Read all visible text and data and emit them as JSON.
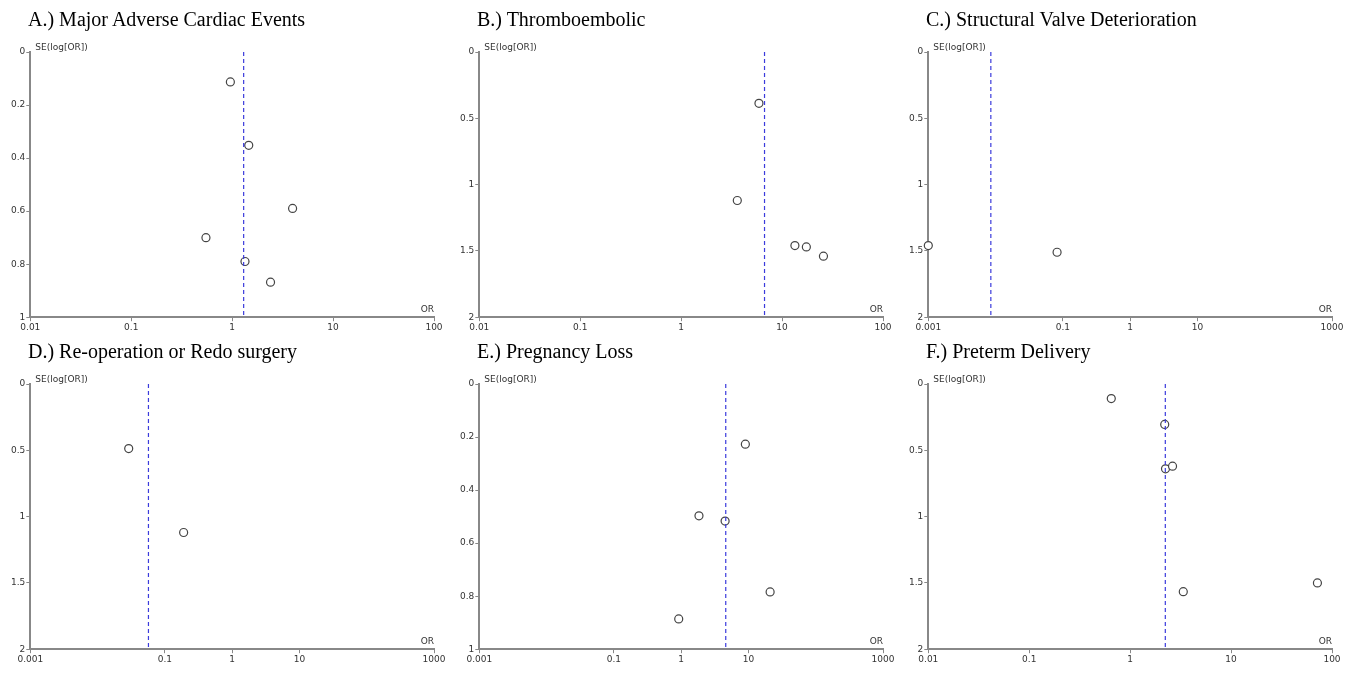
{
  "chart_data": [
    {
      "type": "scatter",
      "title": "A.) Major Adverse Cardiac Events",
      "xlabel": "OR",
      "ylabel": "SE(log[OR])",
      "log": "x",
      "marker": "circle",
      "color": "#444444",
      "x": [
        0.96,
        1.46,
        3.97,
        0.55,
        1.34,
        2.4
      ],
      "values": [
        0.113,
        0.352,
        0.59,
        0.7,
        0.79,
        0.868
      ],
      "xlim": [
        0.01,
        100
      ],
      "xticks": [
        0.01,
        0.1,
        1,
        10,
        100
      ],
      "ylim": [
        1,
        0
      ],
      "yticks": [
        0,
        0.2,
        0.4,
        0.6,
        0.8,
        1
      ],
      "ref_lines": [
        {
          "axis": "x",
          "value": 1.3,
          "color": "#3b3bdc",
          "line_style": "dashed"
        }
      ]
    },
    {
      "type": "scatter",
      "title": "B.) Thromboembolic",
      "xlabel": "OR",
      "ylabel": "SE(log[OR])",
      "log": "x",
      "marker": "circle",
      "color": "#444444",
      "x": [
        5.9,
        3.6,
        13.4,
        17.4,
        25.7
      ],
      "values": [
        0.387,
        1.12,
        1.46,
        1.47,
        1.54
      ],
      "xlim": [
        0.01,
        100
      ],
      "xticks": [
        0.01,
        0.1,
        1,
        10,
        100
      ],
      "ylim": [
        2,
        0
      ],
      "yticks": [
        0,
        0.5,
        1,
        1.5,
        2
      ],
      "ref_lines": [
        {
          "axis": "x",
          "value": 6.7,
          "color": "#3b3bdc",
          "line_style": "dashed"
        }
      ]
    },
    {
      "type": "scatter",
      "title": "C.) Structural Valve Deterioration",
      "xlabel": "OR",
      "ylabel": "SE(log[OR])",
      "log": "x",
      "marker": "circle",
      "color": "#444444",
      "x": [
        0.001,
        0.082
      ],
      "values": [
        1.46,
        1.51
      ],
      "xlim": [
        0.001,
        1000
      ],
      "xticks": [
        0.001,
        0.1,
        1,
        10,
        1000
      ],
      "ylim": [
        2,
        0
      ],
      "yticks": [
        0,
        0.5,
        1,
        1.5,
        2
      ],
      "ref_lines": [
        {
          "axis": "x",
          "value": 0.0085,
          "color": "#3b3bdc",
          "line_style": "dashed"
        }
      ]
    },
    {
      "type": "scatter",
      "title": "D.) Re-operation or Redo surgery",
      "xlabel": "OR",
      "ylabel": "SE(log[OR])",
      "log": "x",
      "marker": "circle",
      "color": "#444444",
      "x": [
        0.029,
        0.19
      ],
      "values": [
        0.487,
        1.12
      ],
      "xlim": [
        0.001,
        1000
      ],
      "xticks": [
        0.001,
        0.1,
        1,
        10,
        1000
      ],
      "ylim": [
        2,
        0
      ],
      "yticks": [
        0,
        0.5,
        1,
        1.5,
        2
      ],
      "ref_lines": [
        {
          "axis": "x",
          "value": 0.057,
          "color": "#3b3bdc",
          "line_style": "dashed"
        }
      ]
    },
    {
      "type": "scatter",
      "title": "E.) Pregnancy Loss",
      "xlabel": "OR",
      "ylabel": "SE(log[OR])",
      "log": "x",
      "marker": "circle",
      "color": "#444444",
      "x": [
        9.0,
        1.84,
        4.5,
        21,
        0.92
      ],
      "values": [
        0.227,
        0.497,
        0.517,
        0.784,
        0.886
      ],
      "xlim": [
        0.001,
        1000
      ],
      "xticks": [
        0.001,
        0.1,
        1,
        10,
        1000
      ],
      "ylim": [
        1,
        0
      ],
      "yticks": [
        0,
        0.2,
        0.4,
        0.6,
        0.8,
        1
      ],
      "ref_lines": [
        {
          "axis": "x",
          "value": 4.6,
          "color": "#3b3bdc",
          "line_style": "dashed"
        }
      ]
    },
    {
      "type": "scatter",
      "title": "F.) Preterm Delivery",
      "xlabel": "OR",
      "ylabel": "SE(log[OR])",
      "log": "x",
      "marker": "circle",
      "color": "#444444",
      "x": [
        0.65,
        2.2,
        2.24,
        2.63,
        3.36,
        71.7
      ],
      "values": [
        0.11,
        0.305,
        0.64,
        0.62,
        1.566,
        1.5
      ],
      "xlim": [
        0.01,
        100
      ],
      "xticks": [
        0.01,
        0.1,
        1,
        10,
        100
      ],
      "ylim": [
        2,
        0
      ],
      "yticks": [
        0,
        0.5,
        1,
        1.5,
        2
      ],
      "ref_lines": [
        {
          "axis": "x",
          "value": 2.23,
          "color": "#3b3bdc",
          "line_style": "dashed"
        }
      ]
    }
  ]
}
